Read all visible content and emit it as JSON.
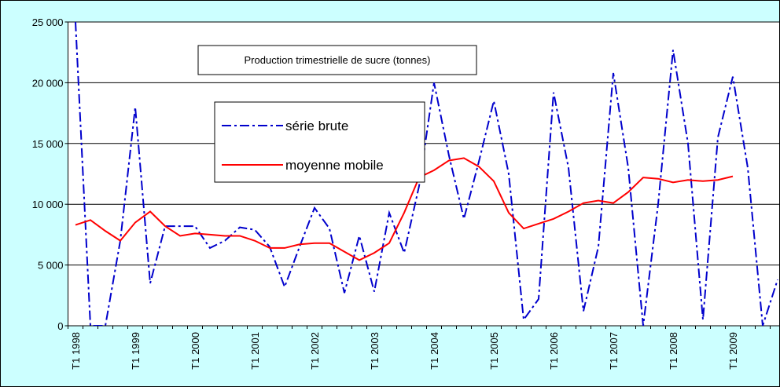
{
  "chart_data": {
    "type": "line",
    "title": "Production trimestrielle de sucre (tonnes)",
    "categories": [
      "T1 1998",
      null,
      null,
      null,
      "T1 1999",
      null,
      null,
      null,
      "T1 2000",
      null,
      null,
      null,
      "T1 2001",
      null,
      null,
      null,
      "T1 2002",
      null,
      null,
      null,
      "T1 2003",
      null,
      null,
      null,
      "T1 2004",
      null,
      null,
      null,
      "T1 2005",
      null,
      null,
      null,
      "T1 2006",
      null,
      null,
      null,
      "T1 2007",
      null,
      null,
      null,
      "T1 2008",
      null,
      null,
      null,
      "T1 2009",
      null,
      null,
      null
    ],
    "series": [
      {
        "name": "série brute",
        "color": "#0000cc",
        "dash": "12 4 3 4",
        "values": [
          25000,
          0,
          0,
          7000,
          18000,
          3500,
          8200,
          8200,
          8200,
          6400,
          7000,
          8100,
          7900,
          6500,
          3200,
          6500,
          9700,
          8000,
          2700,
          7400,
          2800,
          9300,
          6000,
          11500,
          20000,
          14000,
          8800,
          13500,
          18500,
          12500,
          500,
          2200,
          19200,
          13000,
          1200,
          6500,
          20800,
          13000,
          0,
          10000,
          22700,
          15000,
          500,
          15500,
          20500,
          13000,
          0,
          3800
        ]
      },
      {
        "name": "moyenne mobile",
        "color": "#ff0000",
        "values": [
          8300,
          8700,
          7800,
          7000,
          8500,
          9400,
          8200,
          7400,
          7600,
          7500,
          7400,
          7400,
          7000,
          6400,
          6400,
          6700,
          6800,
          6800,
          6100,
          5400,
          6000,
          6800,
          9300,
          12200,
          12800,
          13600,
          13800,
          13100,
          11900,
          9300,
          8000,
          8400,
          8800,
          9400,
          10100,
          10300,
          10100,
          11000,
          12200,
          12100,
          11800,
          12000,
          11900,
          12000,
          12300,
          null,
          null,
          null
        ]
      }
    ],
    "ylim": [
      0,
      25000
    ],
    "yticks": [
      {
        "value": 0,
        "label": "0"
      },
      {
        "value": 5000,
        "label": "5 000"
      },
      {
        "value": 10000,
        "label": "10 000"
      },
      {
        "value": 15000,
        "label": "15 000"
      },
      {
        "value": 20000,
        "label": "20 000"
      },
      {
        "value": 25000,
        "label": "25 000"
      }
    ],
    "grid": true
  }
}
